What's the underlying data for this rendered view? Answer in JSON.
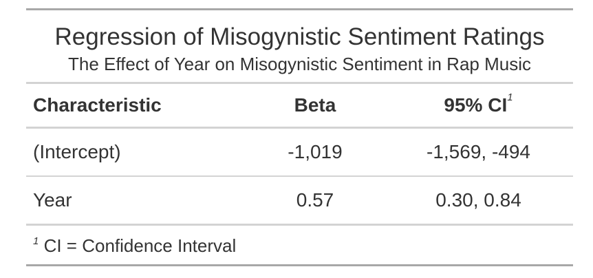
{
  "table": {
    "title": "Regression of Misogynistic Sentiment Ratings",
    "subtitle": "The Effect of Year on Misogynistic Sentiment in Rap Music",
    "columns": [
      {
        "label": "Characteristic",
        "footnote_mark": ""
      },
      {
        "label": "Beta",
        "footnote_mark": ""
      },
      {
        "label": "95% CI",
        "footnote_mark": "1"
      }
    ],
    "rows": [
      {
        "characteristic": "(Intercept)",
        "beta": "-1,019",
        "ci": "-1,569, -494"
      },
      {
        "characteristic": "Year",
        "beta": "0.57",
        "ci": "0.30, 0.84"
      }
    ],
    "footnote": {
      "mark": "1",
      "text": "CI = Confidence Interval"
    }
  }
}
